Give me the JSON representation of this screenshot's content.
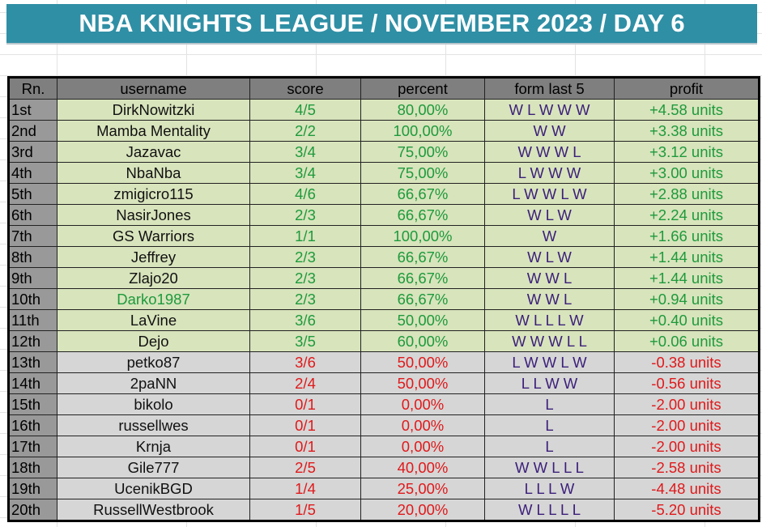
{
  "header": {
    "title": "NBA KNIGHTS LEAGUE / NOVEMBER 2023 / DAY 6"
  },
  "table": {
    "columns": [
      "Rn.",
      "username",
      "score",
      "percent",
      "form last 5",
      "profit"
    ],
    "rows": [
      [
        "1st",
        "DirkNowitzki",
        "4/5",
        "80,00%",
        "W L W W W",
        "+4.58 units"
      ],
      [
        "2nd",
        "Mamba Mentality",
        "2/2",
        "100,00%",
        "W W",
        "+3.38 units"
      ],
      [
        "3rd",
        "Jazavac",
        "3/4",
        "75,00%",
        "W W W L",
        "+3.12 units"
      ],
      [
        "4th",
        "NbaNba",
        "3/4",
        "75,00%",
        "L W W W",
        "+3.00 units"
      ],
      [
        "5th",
        "zmigicro115",
        "4/6",
        "66,67%",
        "L W W L W",
        "+2.88 units"
      ],
      [
        "6th",
        "NasirJones",
        "2/3",
        "66,67%",
        "W L W",
        "+2.24 units"
      ],
      [
        "7th",
        "GS Warriors",
        "1/1",
        "100,00%",
        "W",
        "+1.66 units"
      ],
      [
        "8th",
        "Jeffrey",
        "2/3",
        "66,67%",
        "W L W",
        "+1.44 units"
      ],
      [
        "9th",
        "Zlajo20",
        "2/3",
        "66,67%",
        "W W L",
        "+1.44 units"
      ],
      [
        "10th",
        "Darko1987",
        "2/3",
        "66,67%",
        "W W L",
        "+0.94 units"
      ],
      [
        "11th",
        "LaVine",
        "3/6",
        "50,00%",
        "W L L L W",
        "+0.40 units"
      ],
      [
        "12th",
        "Dejo",
        "3/5",
        "60,00%",
        "W W W L L",
        "+0.06 units"
      ],
      [
        "13th",
        "petko87",
        "3/6",
        "50,00%",
        "L W W L W",
        "-0.38 units"
      ],
      [
        "14th",
        "2paNN",
        "2/4",
        "50,00%",
        "L L W W",
        "-0.56 units"
      ],
      [
        "15th",
        "bikolo",
        "0/1",
        "0,00%",
        "L",
        "-2.00 units"
      ],
      [
        "16th",
        "russellwes",
        "0/1",
        "0,00%",
        "L",
        "-2.00 units"
      ],
      [
        "17th",
        "Krnja",
        "0/1",
        "0,00%",
        "L",
        "-2.00 units"
      ],
      [
        "18th",
        "Gile777",
        "2/5",
        "40,00%",
        "W W L L L",
        "-2.58 units"
      ],
      [
        "19th",
        "UcenikBGD",
        "1/4",
        "25,00%",
        "L L L W",
        "-4.48 units"
      ],
      [
        "20th",
        "RussellWestbrook",
        "1/5",
        "20,00%",
        "W L L L L",
        "-5.20 units"
      ]
    ]
  }
}
